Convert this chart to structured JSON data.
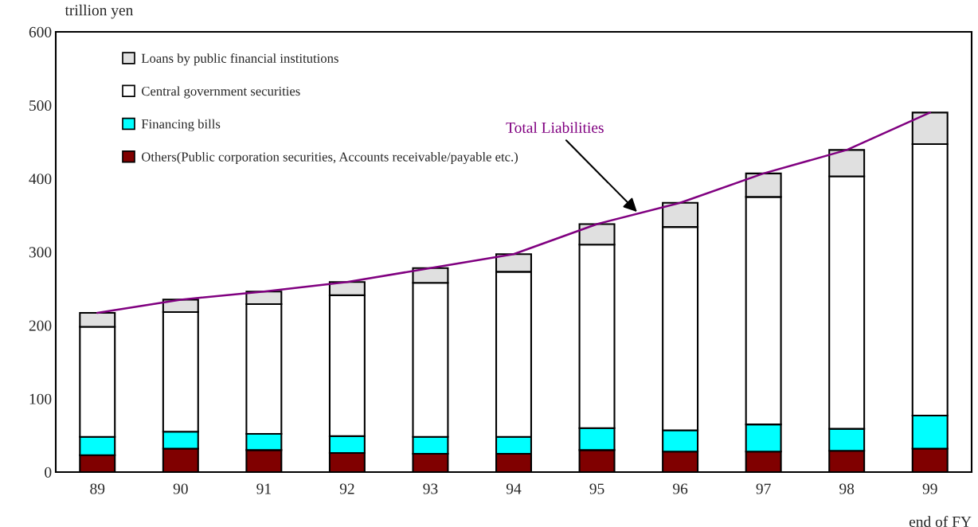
{
  "chart_data": {
    "type": "bar",
    "stacked": true,
    "ylabel": "trillion yen",
    "xlabel": "end of FY",
    "categories": [
      "89",
      "90",
      "91",
      "92",
      "93",
      "94",
      "95",
      "96",
      "97",
      "98",
      "99"
    ],
    "series": [
      {
        "name": "Others(Public corporation securities, Accounts receivable/payable etc.)",
        "color": "#800000",
        "values": [
          23,
          32,
          30,
          26,
          25,
          25,
          30,
          28,
          28,
          29,
          32
        ]
      },
      {
        "name": "Financing bills",
        "color": "#00ffff",
        "values": [
          25,
          23,
          22,
          23,
          23,
          23,
          30,
          29,
          37,
          30,
          45
        ]
      },
      {
        "name": "Central government securities",
        "color": "#ffffff",
        "values": [
          150,
          163,
          177,
          192,
          210,
          225,
          250,
          277,
          310,
          344,
          370
        ]
      },
      {
        "name": "Loans by public financial institutions",
        "color": "#e0e0e0",
        "values": [
          19,
          17,
          17,
          18,
          20,
          24,
          28,
          33,
          32,
          36,
          43
        ]
      },
      {
        "name": "Total Liabilities",
        "type": "line",
        "color": "#800080",
        "values": [
          217,
          235,
          246,
          259,
          278,
          297,
          338,
          367,
          407,
          439,
          490
        ]
      }
    ],
    "ylim": [
      0,
      600
    ],
    "yticks": [
      0,
      100,
      200,
      300,
      400,
      500,
      600
    ],
    "grid": false,
    "legend": "top left"
  }
}
